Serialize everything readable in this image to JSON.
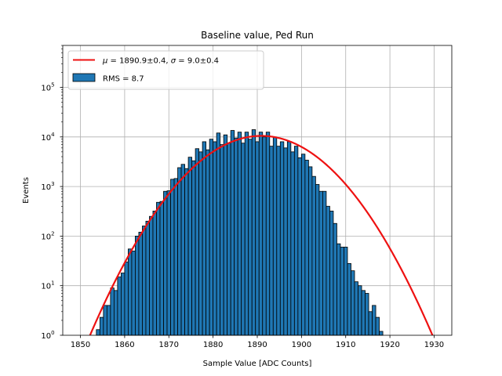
{
  "chart_data": {
    "type": "bar",
    "title": "Baseline value, Ped Run",
    "xlabel": "Sample Value [ADC Counts]",
    "ylabel": "Events",
    "xlim": [
      1846,
      1934
    ],
    "ylim": [
      1,
      700000
    ],
    "y_scale": "log",
    "grid": true,
    "xticks": [
      1850,
      1860,
      1870,
      1880,
      1890,
      1900,
      1910,
      1920,
      1930
    ],
    "xtick_labels": [
      "1850",
      "1860",
      "1870",
      "1880",
      "1890",
      "1900",
      "1910",
      "1920",
      "1930"
    ],
    "yticks": [
      1,
      10,
      100,
      1000,
      10000,
      100000
    ],
    "ytick_labels": [
      {
        "base": "10",
        "exp": "0"
      },
      {
        "base": "10",
        "exp": "1"
      },
      {
        "base": "10",
        "exp": "2"
      },
      {
        "base": "10",
        "exp": "3"
      },
      {
        "base": "10",
        "exp": "4"
      },
      {
        "base": "10",
        "exp": "5"
      }
    ],
    "histogram": {
      "name": "RMS = 8.7",
      "color": "#1f77b4",
      "edge_color": "#000000",
      "bin_edges_start": 1853.6,
      "bin_width": 0.8,
      "counts": [
        1.3,
        2.3,
        4,
        4,
        9,
        8,
        15,
        18,
        30,
        55,
        50,
        100,
        120,
        160,
        200,
        250,
        320,
        480,
        500,
        800,
        820,
        1400,
        1450,
        2400,
        2800,
        2300,
        3900,
        3300,
        5800,
        5000,
        8000,
        5500,
        9000,
        8000,
        12000,
        7000,
        11000,
        7500,
        13500,
        9500,
        12500,
        7500,
        12500,
        9000,
        14000,
        8000,
        12500,
        10000,
        12500,
        6500,
        10000,
        6500,
        8000,
        6000,
        8000,
        5000,
        6500,
        3800,
        4500,
        3400,
        2500,
        1600,
        1100,
        800,
        800,
        400,
        320,
        180,
        70,
        60,
        60,
        28,
        20,
        12,
        10,
        8,
        7,
        3,
        4,
        2.3,
        1.2
      ]
    },
    "fit_curve": {
      "name": "μ=1890.9±0.4, σ=9.0±0.4",
      "color": "#ee1111",
      "mu": 1890.9,
      "sigma": 9.0,
      "amplitude": 10500
    },
    "legend": {
      "placement": "top-left",
      "entries": [
        {
          "kind": "line",
          "label_prefix": "μ",
          "label_mid": " = 1890.9±0.4, ",
          "label_sigma": "σ",
          "label_suffix": " = 9.0±0.4",
          "color": "#ee1111"
        },
        {
          "kind": "patch",
          "label": "RMS = 8.7",
          "color": "#1f77b4"
        }
      ]
    }
  }
}
